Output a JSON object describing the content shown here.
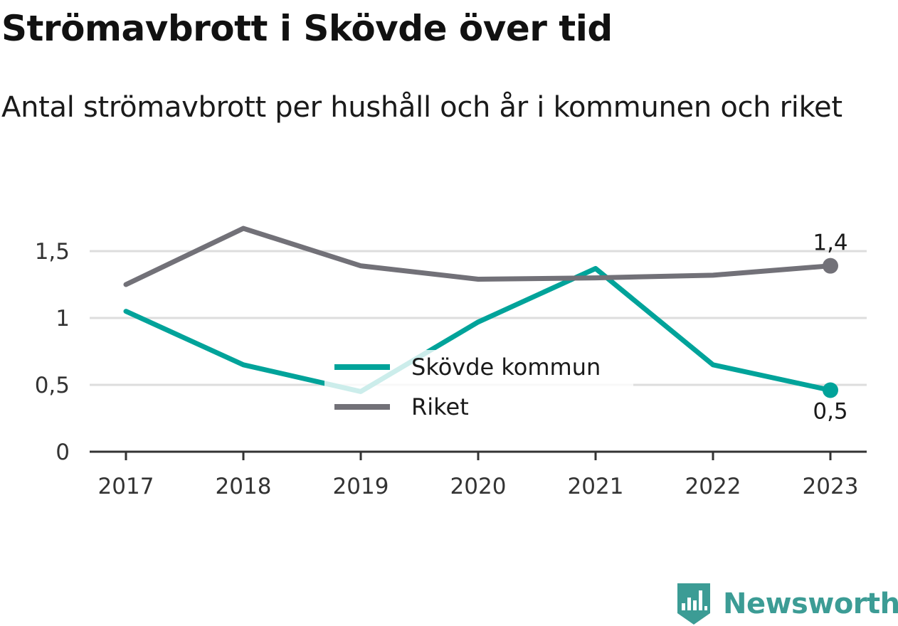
{
  "header": {
    "title": "Strömavbrott i Skövde över tid",
    "subtitle": "Antal strömavbrott per hushåll och år i kommunen och riket"
  },
  "chart_data": {
    "type": "line",
    "title": "Strömavbrott i Skövde över tid",
    "subtitle": "Antal strömavbrott per hushåll och år i kommunen och riket",
    "xlabel": "",
    "ylabel": "",
    "x": [
      "2017",
      "2018",
      "2019",
      "2020",
      "2021",
      "2022",
      "2023"
    ],
    "ylim": [
      0,
      1.75
    ],
    "yticks": [
      0,
      0.5,
      1,
      1.5
    ],
    "ytick_labels": [
      "0",
      "0,5",
      "1",
      "1,5"
    ],
    "grid": true,
    "legend_position": "center",
    "series": [
      {
        "name": "Skövde kommun",
        "color": "#00a39a",
        "values": [
          1.05,
          0.65,
          0.45,
          0.97,
          1.37,
          0.65,
          0.46
        ],
        "end_label": "0,5"
      },
      {
        "name": "Riket",
        "color": "#727178",
        "values": [
          1.25,
          1.67,
          1.39,
          1.29,
          1.3,
          1.32,
          1.39
        ],
        "end_label": "1,4"
      }
    ]
  },
  "branding": {
    "name": "Newsworthy",
    "color": "#3c9c95",
    "icon": "newsworthy-logo-icon"
  }
}
